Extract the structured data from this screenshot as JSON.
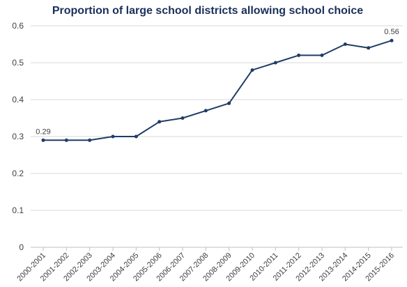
{
  "chart_data": {
    "type": "line",
    "title": "Proportion of large school districts allowing school choice",
    "xlabel": "",
    "ylabel": "",
    "ylim": [
      0,
      0.6
    ],
    "yticks": [
      "0",
      "0.1",
      "0.2",
      "0.3",
      "0.4",
      "0.5",
      "0.6"
    ],
    "grid": "horizontal",
    "legend": "none",
    "categories": [
      "2000-2001",
      "2001-2002",
      "2002-2003",
      "2003-2004",
      "2004-2005",
      "2005-2006",
      "2006-2007",
      "2007-2008",
      "2008-2009",
      "2009-2010",
      "2010-2011",
      "2011-2012",
      "2012-2013",
      "2013-2014",
      "2014-2015",
      "2015-2016"
    ],
    "series": [
      {
        "values": [
          0.29,
          0.29,
          0.29,
          0.3,
          0.3,
          0.34,
          0.35,
          0.37,
          0.39,
          0.48,
          0.5,
          0.52,
          0.52,
          0.55,
          0.54,
          0.56
        ]
      }
    ],
    "data_labels": [
      {
        "index": 0,
        "text": "0.29"
      },
      {
        "index": 15,
        "text": "0.56"
      }
    ],
    "colors": {
      "line": "#1f3d66",
      "title": "#1a2f5a",
      "grid": "#d9d9d9",
      "axis": "#bfbfbf",
      "text": "#404040"
    }
  }
}
